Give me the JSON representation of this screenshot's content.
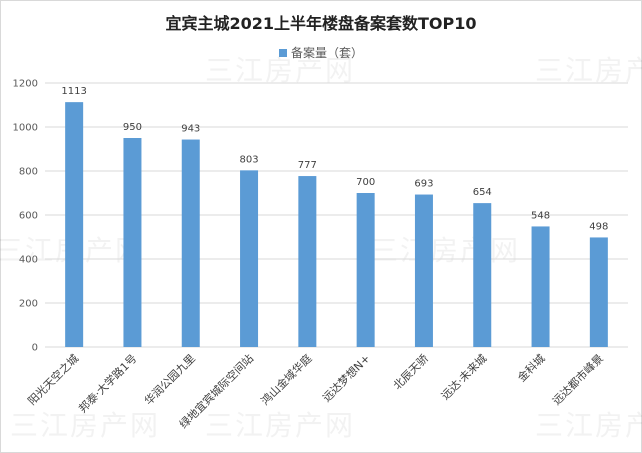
{
  "chart_data": {
    "type": "bar",
    "title": "宜宾主城2021上半年楼盘备案套数TOP10",
    "legend": {
      "position": "top",
      "entries": [
        "备案量（套）"
      ]
    },
    "categories": [
      "阳光天空之城",
      "邦泰·大学路1号",
      "华润公园九里",
      "绿地宜宾城际空间站",
      "鸿山金域华庭",
      "远达梦想N+",
      "北辰天骄",
      "远达·未来城",
      "金科城",
      "远达都市峰景"
    ],
    "series": [
      {
        "name": "备案量（套）",
        "values": [
          1113,
          950,
          943,
          803,
          777,
          700,
          693,
          654,
          548,
          498
        ],
        "color": "#5b9bd5"
      }
    ],
    "y_ticks": [
      0,
      200,
      400,
      600,
      800,
      1000,
      1200
    ],
    "ylim": [
      0,
      1200
    ],
    "grid": true,
    "watermark": "三江房产网"
  }
}
